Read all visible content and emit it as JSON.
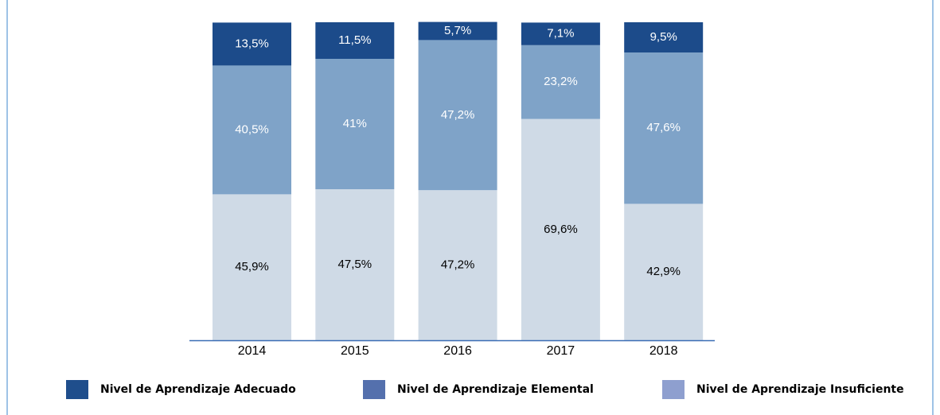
{
  "chart_data": {
    "type": "stacked_bar",
    "categories": [
      "2014",
      "2015",
      "2016",
      "2017",
      "2018"
    ],
    "series": [
      {
        "name": "Nivel de Aprendizaje Adecuado",
        "color": "#1c4b8a",
        "legend_color": "#1f4e8c",
        "label_color": "#ffffff",
        "values": [
          13.5,
          11.5,
          5.7,
          7.1,
          9.5
        ],
        "value_labels": [
          "13,5%",
          "11,5%",
          "5,7%",
          "7,1%",
          "9,5%"
        ]
      },
      {
        "name": "Nivel de Aprendizaje Elemental",
        "color": "#7fa3c8",
        "legend_color": "#5470ad",
        "label_color": "#ffffff",
        "values": [
          40.5,
          41,
          47.2,
          23.2,
          47.6
        ],
        "value_labels": [
          "40,5%",
          "41%",
          "47,2%",
          "23,2%",
          "47,6%"
        ]
      },
      {
        "name": "Nivel de Aprendizaje Insuficiente",
        "color": "#cfdae6",
        "legend_color": "#8e9fcf",
        "label_color": "#000000",
        "values": [
          45.9,
          47.5,
          47.2,
          69.6,
          42.9
        ],
        "value_labels": [
          "45,9%",
          "47,5%",
          "47,2%",
          "69,6%",
          "42,9%"
        ]
      }
    ],
    "ylim": [
      0,
      100
    ]
  }
}
